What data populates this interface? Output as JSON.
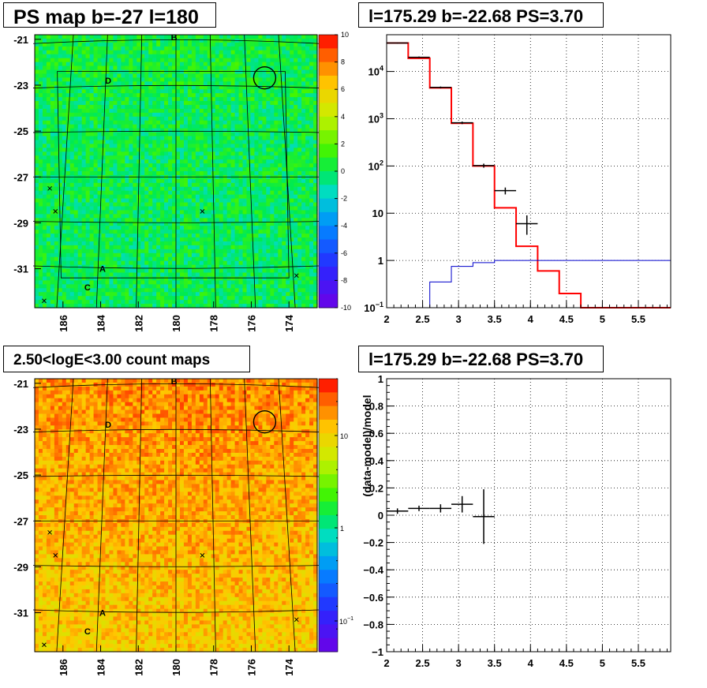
{
  "panels": {
    "ps_map": {
      "title": "PS map b=-27 l=180"
    },
    "spectrum": {
      "title": "l=175.29 b=-22.68 PS=3.70"
    },
    "count_map": {
      "title": "2.50<logE<3.00 count maps"
    },
    "residual": {
      "title": "l=175.29 b=-22.68 PS=3.70"
    }
  },
  "colors": {
    "red": "#ff0000",
    "blue": "#0000cc",
    "black": "#000000",
    "grid": "#000000"
  },
  "chart_data": [
    {
      "type": "heatmap",
      "title": "PS map b=-27 l=180",
      "x_ticks": [
        "186",
        "184",
        "182",
        "180",
        "178",
        "176",
        "174"
      ],
      "y_ticks": [
        "-21",
        "-23",
        "-25",
        "-27",
        "-29",
        "-31"
      ],
      "xlim": [
        187.5,
        172.5
      ],
      "ylim": [
        -32.7,
        -20.8
      ],
      "colorbar": {
        "min": -10,
        "max": 10,
        "ticks": [
          "10",
          "8",
          "6",
          "4",
          "2",
          "0",
          "-2",
          "-4",
          "-6",
          "-8",
          "-10"
        ]
      },
      "dominant_value": 0,
      "labels": [
        {
          "text": "B",
          "l": 180.1,
          "b": -20.9
        },
        {
          "text": "D",
          "l": 183.6,
          "b": -22.8
        },
        {
          "text": "A",
          "l": 183.9,
          "b": -31.0
        },
        {
          "text": "C",
          "l": 184.7,
          "b": -31.8
        }
      ],
      "circle": {
        "l": 175.29,
        "b": -22.68
      },
      "crosses": [
        {
          "l": 186.7,
          "b": -27.5
        },
        {
          "l": 186.4,
          "b": -28.5
        },
        {
          "l": 178.6,
          "b": -28.5
        },
        {
          "l": 187.0,
          "b": -32.4
        },
        {
          "l": 173.6,
          "b": -31.3
        }
      ]
    },
    {
      "type": "line",
      "title": "l=175.29 b=-22.68 PS=3.70",
      "x_ticks": [
        "2",
        "2.5",
        "3",
        "3.5",
        "4",
        "4.5",
        "5",
        "5.5"
      ],
      "y_ticks": [
        "10^-1",
        "1",
        "10",
        "10^2",
        "10^3",
        "10^4"
      ],
      "xlim": [
        2,
        5.95
      ],
      "ylim": [
        0.1,
        60000
      ],
      "y_scale": "log",
      "grid": true,
      "series": [
        {
          "color": "red",
          "style": "step",
          "edges": [
            2,
            2.3,
            2.6,
            2.9,
            3.2,
            3.5,
            3.8,
            4.1,
            4.4,
            4.7,
            5.95
          ],
          "values": [
            40000,
            19000,
            4500,
            800,
            100,
            13,
            2,
            0.6,
            0.2,
            0.1
          ]
        },
        {
          "color": "blue",
          "style": "step",
          "edges": [
            2.6,
            2.9,
            3.2,
            3.5,
            5.95
          ],
          "values": [
            0.35,
            0.75,
            0.9,
            1.0
          ]
        },
        {
          "color": "black",
          "style": "errorbar",
          "points": [
            {
              "x": 2.15,
              "y": 40000,
              "xerr": 0.15,
              "ylo": 39000,
              "yhi": 41000
            },
            {
              "x": 2.45,
              "y": 20000,
              "xerr": 0.15,
              "ylo": 19300,
              "yhi": 20700
            },
            {
              "x": 2.75,
              "y": 4600,
              "xerr": 0.15,
              "ylo": 4400,
              "yhi": 4800
            },
            {
              "x": 3.05,
              "y": 820,
              "xerr": 0.15,
              "ylo": 770,
              "yhi": 870
            },
            {
              "x": 3.35,
              "y": 102,
              "xerr": 0.15,
              "ylo": 92,
              "yhi": 112
            },
            {
              "x": 3.65,
              "y": 30,
              "xerr": 0.15,
              "ylo": 25,
              "yhi": 35
            },
            {
              "x": 3.95,
              "y": 6,
              "xerr": 0.15,
              "ylo": 3.5,
              "yhi": 9
            }
          ]
        }
      ]
    },
    {
      "type": "heatmap",
      "title": "2.50<logE<3.00 count maps",
      "x_ticks": [
        "186",
        "184",
        "182",
        "180",
        "178",
        "176",
        "174"
      ],
      "y_ticks": [
        "-21",
        "-23",
        "-25",
        "-27",
        "-29",
        "-31"
      ],
      "xlim": [
        187.5,
        172.5
      ],
      "ylim": [
        -32.7,
        -20.8
      ],
      "colorbar": {
        "scale": "log",
        "ticks": [
          "10",
          "1",
          "10^-1"
        ]
      },
      "labels": [
        {
          "text": "B",
          "l": 180.1,
          "b": -20.9
        },
        {
          "text": "D",
          "l": 183.6,
          "b": -22.8
        },
        {
          "text": "A",
          "l": 183.9,
          "b": -31.0
        },
        {
          "text": "C",
          "l": 184.7,
          "b": -31.8
        }
      ],
      "circle": {
        "l": 175.29,
        "b": -22.68
      },
      "crosses": [
        {
          "l": 186.7,
          "b": -27.5
        },
        {
          "l": 186.4,
          "b": -28.5
        },
        {
          "l": 178.6,
          "b": -28.5
        },
        {
          "l": 187.0,
          "b": -32.4
        },
        {
          "l": 173.6,
          "b": -31.3
        }
      ]
    },
    {
      "type": "scatter",
      "title": "l=175.29 b=-22.68 PS=3.70",
      "ylabel": "(data-model)/model",
      "x_ticks": [
        "2",
        "2.5",
        "3",
        "3.5",
        "4",
        "4.5",
        "5",
        "5.5"
      ],
      "y_ticks": [
        "1",
        "0.8",
        "0.6",
        "0.4",
        "0.2",
        "0",
        "−0.2",
        "−0.4",
        "−0.6",
        "−0.8",
        "−1"
      ],
      "xlim": [
        2,
        5.95
      ],
      "ylim": [
        -1,
        1
      ],
      "grid": true,
      "series": [
        {
          "color": "black",
          "style": "errorbar",
          "points": [
            {
              "x": 2.15,
              "y": 0.03,
              "xerr": 0.15,
              "yerr": 0.02
            },
            {
              "x": 2.45,
              "y": 0.05,
              "xerr": 0.15,
              "yerr": 0.02
            },
            {
              "x": 2.75,
              "y": 0.05,
              "xerr": 0.15,
              "yerr": 0.03
            },
            {
              "x": 3.05,
              "y": 0.08,
              "xerr": 0.15,
              "yerr": 0.06
            },
            {
              "x": 3.35,
              "y": -0.01,
              "xerr": 0.15,
              "yerr": 0.2
            }
          ]
        }
      ]
    }
  ]
}
